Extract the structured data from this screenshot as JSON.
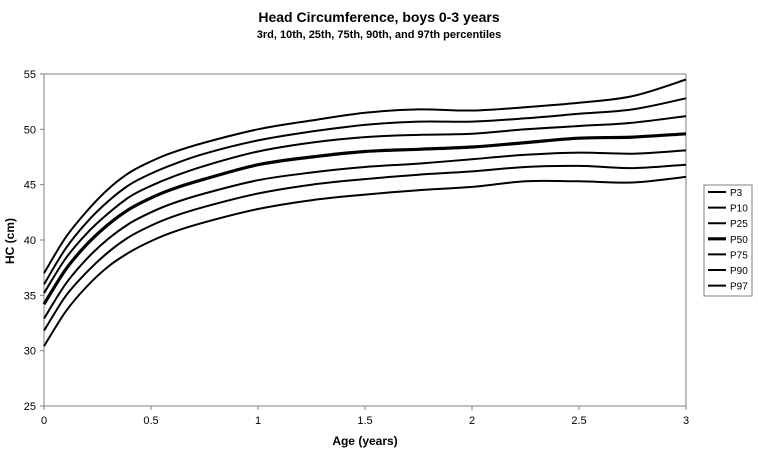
{
  "chart_data": {
    "type": "line",
    "title": "Head Circumference, boys 0-3 years",
    "subtitle": "3rd, 10th, 25th, 75th, 90th, and 97th percentiles",
    "xlabel": "Age (years)",
    "ylabel": "HC (cm)",
    "xlim": [
      0,
      3
    ],
    "ylim": [
      25,
      55
    ],
    "xticks": [
      "0",
      "0.5",
      "1",
      "1.5",
      "2",
      "2.5",
      "3"
    ],
    "yticks": [
      "25",
      "30",
      "35",
      "40",
      "45",
      "50",
      "55"
    ],
    "grid": false,
    "legend_position": "right",
    "line_color": "#000000",
    "x": [
      0,
      0.1,
      0.2,
      0.3,
      0.4,
      0.5,
      0.6,
      0.75,
      1.0,
      1.25,
      1.5,
      1.75,
      2.0,
      2.25,
      2.5,
      2.75,
      3.0
    ],
    "series": [
      {
        "name": "P3",
        "bold": false,
        "values": [
          30.4,
          33.5,
          35.8,
          37.6,
          38.9,
          39.9,
          40.7,
          41.6,
          42.8,
          43.6,
          44.1,
          44.5,
          44.8,
          45.3,
          45.3,
          45.2,
          45.7
        ]
      },
      {
        "name": "P10",
        "bold": false,
        "values": [
          31.8,
          34.9,
          37.1,
          38.9,
          40.3,
          41.3,
          42.1,
          43.0,
          44.2,
          45.0,
          45.5,
          45.9,
          46.2,
          46.6,
          46.7,
          46.5,
          46.8
        ]
      },
      {
        "name": "P25",
        "bold": false,
        "values": [
          32.9,
          36.0,
          38.3,
          40.1,
          41.5,
          42.5,
          43.3,
          44.2,
          45.4,
          46.1,
          46.6,
          46.9,
          47.3,
          47.7,
          47.9,
          47.8,
          48.1
        ]
      },
      {
        "name": "P50",
        "bold": true,
        "values": [
          34.2,
          37.3,
          39.6,
          41.4,
          42.8,
          43.8,
          44.6,
          45.5,
          46.8,
          47.5,
          48.0,
          48.2,
          48.4,
          48.8,
          49.2,
          49.3,
          49.6
        ]
      },
      {
        "name": "P75",
        "bold": false,
        "values": [
          35.2,
          38.3,
          40.6,
          42.4,
          43.9,
          44.9,
          45.7,
          46.7,
          48.0,
          48.8,
          49.3,
          49.5,
          49.6,
          50.0,
          50.3,
          50.6,
          51.2
        ]
      },
      {
        "name": "P90",
        "bold": false,
        "values": [
          36.0,
          39.2,
          41.6,
          43.5,
          45.0,
          46.0,
          46.8,
          47.8,
          49.0,
          49.8,
          50.4,
          50.7,
          50.7,
          51.0,
          51.4,
          51.8,
          52.8
        ]
      },
      {
        "name": "P97",
        "bold": false,
        "values": [
          37.0,
          40.2,
          42.6,
          44.6,
          46.1,
          47.1,
          47.9,
          48.8,
          50.0,
          50.8,
          51.5,
          51.8,
          51.7,
          52.0,
          52.4,
          53.0,
          54.5
        ]
      }
    ]
  }
}
